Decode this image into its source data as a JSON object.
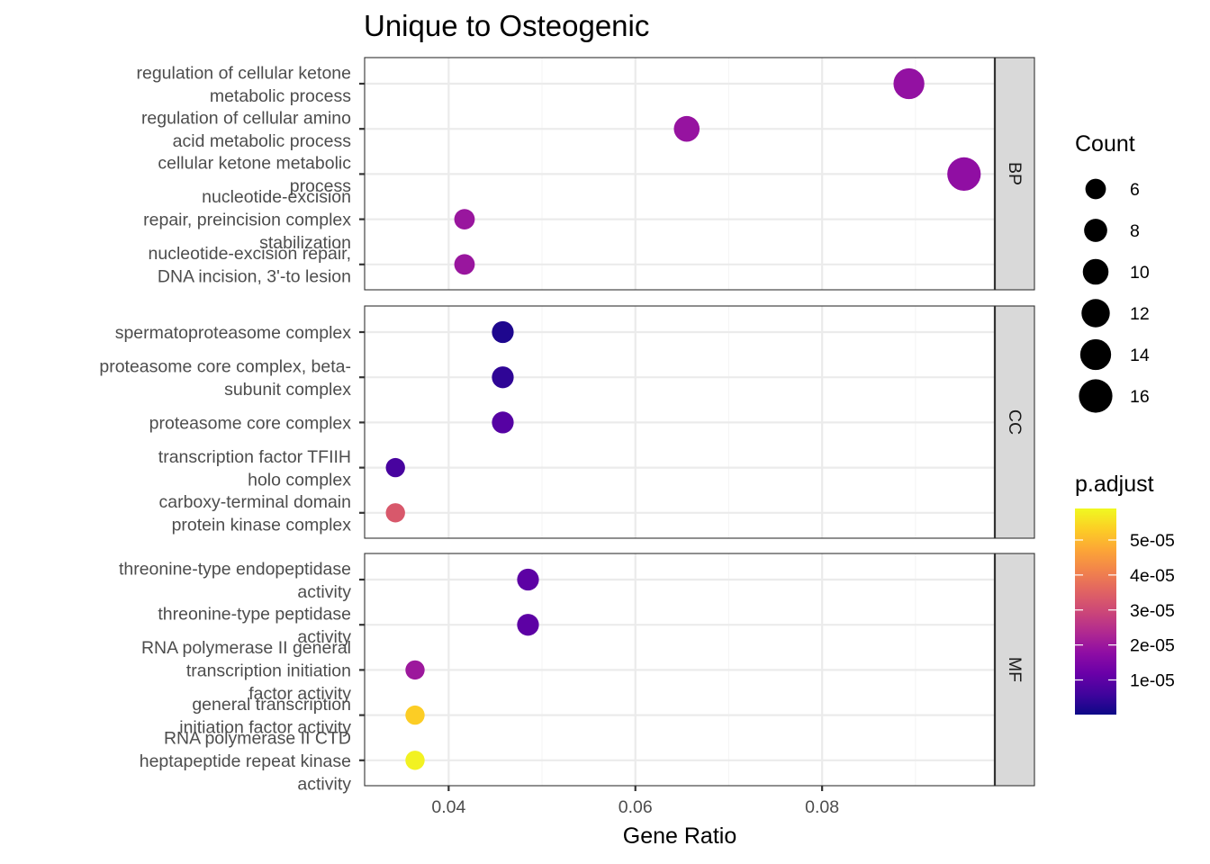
{
  "chart_data": {
    "type": "scatter",
    "title": "Unique to Osteogenic",
    "xlabel": "Gene Ratio",
    "ylabel": "",
    "xlim": [
      0.031,
      0.0985
    ],
    "x_ticks": [
      0.04,
      0.06,
      0.08
    ],
    "x_tick_labels": [
      "0.04",
      "0.06",
      "0.08"
    ],
    "grid": true,
    "facets": [
      {
        "name": "BP",
        "terms": [
          {
            "label": [
              "regulation of cellular ketone",
              "metabolic process"
            ],
            "gene_ratio": 0.0893,
            "count": 14,
            "p_adjust": 1.85e-05
          },
          {
            "label": [
              "regulation of cellular amino",
              "acid metabolic process"
            ],
            "gene_ratio": 0.0655,
            "count": 10,
            "p_adjust": 1.9e-05
          },
          {
            "label": [
              "cellular ketone metabolic",
              "process"
            ],
            "gene_ratio": 0.0952,
            "count": 16,
            "p_adjust": 1.8e-05
          },
          {
            "label": [
              "nucleotide-excision",
              "repair, preincision complex",
              "stabilization"
            ],
            "gene_ratio": 0.0417,
            "count": 6,
            "p_adjust": 1.95e-05
          },
          {
            "label": [
              "nucleotide-excision repair,",
              "DNA incision, 3'-to lesion"
            ],
            "gene_ratio": 0.0417,
            "count": 6,
            "p_adjust": 1.95e-05
          }
        ]
      },
      {
        "name": "CC",
        "terms": [
          {
            "label": [
              "spermatoproteasome complex"
            ],
            "gene_ratio": 0.0458,
            "count": 7,
            "p_adjust": 2e-06
          },
          {
            "label": [
              "proteasome core complex, beta-",
              "subunit complex"
            ],
            "gene_ratio": 0.0458,
            "count": 7,
            "p_adjust": 4e-06
          },
          {
            "label": [
              "proteasome core complex"
            ],
            "gene_ratio": 0.0458,
            "count": 7,
            "p_adjust": 9e-06
          },
          {
            "label": [
              "transcription factor TFIIH",
              "holo complex"
            ],
            "gene_ratio": 0.0343,
            "count": 5,
            "p_adjust": 7e-06
          },
          {
            "label": [
              "carboxy-terminal domain",
              "protein kinase complex"
            ],
            "gene_ratio": 0.0343,
            "count": 5,
            "p_adjust": 3.3e-05
          }
        ]
      },
      {
        "name": "MF",
        "terms": [
          {
            "label": [
              "threonine-type endopeptidase",
              "activity"
            ],
            "gene_ratio": 0.0485,
            "count": 7,
            "p_adjust": 1e-05
          },
          {
            "label": [
              "threonine-type peptidase",
              "activity"
            ],
            "gene_ratio": 0.0485,
            "count": 7,
            "p_adjust": 1e-05
          },
          {
            "label": [
              "RNA polymerase II general",
              "transcription initiation",
              "factor activity"
            ],
            "gene_ratio": 0.0364,
            "count": 5,
            "p_adjust": 2e-05
          },
          {
            "label": [
              "general transcription",
              "initiation factor activity"
            ],
            "gene_ratio": 0.0364,
            "count": 5,
            "p_adjust": 5.3e-05
          },
          {
            "label": [
              "RNA polymerase II CTD",
              "heptapeptide repeat kinase",
              "activity"
            ],
            "gene_ratio": 0.0364,
            "count": 5,
            "p_adjust": 5.8e-05
          }
        ]
      }
    ],
    "size_legend": {
      "title": "Count",
      "values": [
        6,
        8,
        10,
        12,
        14,
        16
      ],
      "labels": [
        "6",
        "8",
        "10",
        "12",
        "14",
        "16"
      ]
    },
    "color_legend": {
      "title": "p.adjust",
      "range": [
        1e-07,
        5.9e-05
      ],
      "ticks": [
        1e-05,
        2e-05,
        3e-05,
        4e-05,
        5e-05
      ],
      "tick_labels": [
        "1e-05",
        "2e-05",
        "3e-05",
        "4e-05",
        "5e-05"
      ],
      "colormap": "plasma",
      "low_color": "#0d0887",
      "high_color": "#f0f921"
    },
    "colors": {
      "panel_border": "#333333",
      "grid_major": "#ebebeb",
      "grid_minor": "#f5f5f5",
      "strip_fill": "#d9d9d9"
    }
  }
}
